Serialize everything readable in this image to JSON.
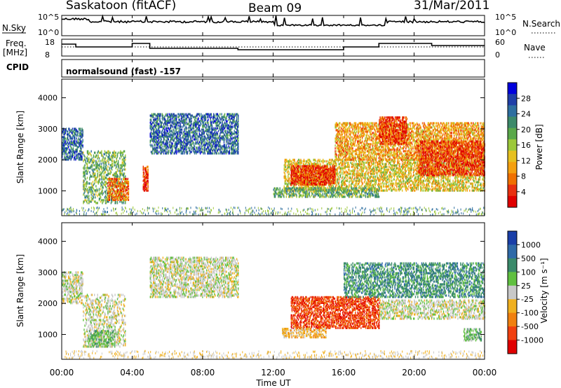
{
  "header": {
    "station": "Saskatoon (fitACF)",
    "beam": "Beam 09",
    "date": "31/Mar/2011"
  },
  "top_panels": {
    "nsky_label": "N.Sky",
    "nsky_ticks": [
      "10^5",
      "10^0"
    ],
    "nsearch_label": "N.Search",
    "nsearch_ticks": [
      "10^5",
      "10^0"
    ],
    "freq_label_1": "Freq.",
    "freq_label_2": "[MHz]",
    "freq_ticks": [
      "18",
      "8"
    ],
    "nave_label": "Nave",
    "nave_ticks": [
      "60",
      "0"
    ],
    "cpid_label": "CPID",
    "cpid_value": "normalsound (fast) -157"
  },
  "chart_data": [
    {
      "type": "heatmap",
      "name": "power",
      "ylabel": "Slant Range [km]",
      "yticks": [
        "4000",
        "3000",
        "2000",
        "1000"
      ],
      "ylim": [
        200,
        4600
      ],
      "xlim": [
        0,
        24
      ],
      "colorbar_label": "Power [dB]",
      "colorbar_ticks": [
        "28",
        "24",
        "20",
        "16",
        "12",
        "8",
        "4"
      ],
      "colors": [
        "#0000dd",
        "#1f3fa8",
        "#2e6fa0",
        "#3c8a6a",
        "#5aa84a",
        "#9cc83a",
        "#e6c020",
        "#f5a010",
        "#f07000",
        "#e83010",
        "#e00000"
      ]
    },
    {
      "type": "heatmap",
      "name": "velocity",
      "ylabel": "Slant Range [km]",
      "yticks": [
        "4000",
        "3000",
        "2000",
        "1000"
      ],
      "ylim": [
        200,
        4600
      ],
      "xlim": [
        0,
        24
      ],
      "colorbar_label": "Velocity [m s⁻¹]",
      "colorbar_ticks": [
        "1000",
        "500",
        "100",
        "25",
        "-25",
        "-100",
        "-500",
        "-1000"
      ],
      "colors": [
        "#1a3fa8",
        "#2f6aa8",
        "#3a8a6a",
        "#60c040",
        "#c8c8c8",
        "#f0b020",
        "#f08010",
        "#f04010",
        "#e00000"
      ]
    }
  ],
  "x_axis": {
    "ticks": [
      "00:00",
      "04:00",
      "08:00",
      "12:00",
      "16:00",
      "20:00",
      "00:00"
    ],
    "label": "Time UT"
  }
}
